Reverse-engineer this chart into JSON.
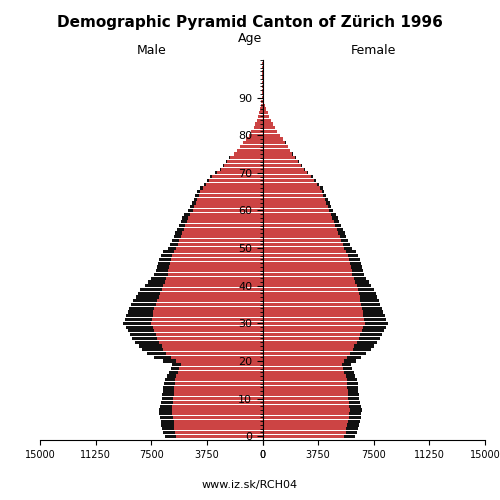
{
  "title": "Demographic Pyramid Canton of Zürich 1996",
  "male_label": "Male",
  "female_label": "Female",
  "age_label": "Age",
  "footer": "www.iz.sk/RCH04",
  "xlim": 15000,
  "xticks": [
    15000,
    11250,
    7500,
    3750,
    0
  ],
  "xticks_right": [
    0,
    3750,
    7500,
    11250,
    15000
  ],
  "bar_color_swiss": "#cc4444",
  "bar_color_foreign": "#111111",
  "bar_height": 0.85,
  "ages": [
    0,
    1,
    2,
    3,
    4,
    5,
    6,
    7,
    8,
    9,
    10,
    11,
    12,
    13,
    14,
    15,
    16,
    17,
    18,
    19,
    20,
    21,
    22,
    23,
    24,
    25,
    26,
    27,
    28,
    29,
    30,
    31,
    32,
    33,
    34,
    35,
    36,
    37,
    38,
    39,
    40,
    41,
    42,
    43,
    44,
    45,
    46,
    47,
    48,
    49,
    50,
    51,
    52,
    53,
    54,
    55,
    56,
    57,
    58,
    59,
    60,
    61,
    62,
    63,
    64,
    65,
    66,
    67,
    68,
    69,
    70,
    71,
    72,
    73,
    74,
    75,
    76,
    77,
    78,
    79,
    80,
    81,
    82,
    83,
    84,
    85,
    86,
    87,
    88,
    89,
    90,
    91,
    92,
    93,
    94,
    95,
    96,
    97,
    98,
    99
  ],
  "male_swiss": [
    5800,
    5900,
    5950,
    5980,
    6000,
    6050,
    6100,
    6120,
    6080,
    6050,
    6020,
    6000,
    5980,
    5960,
    5930,
    5900,
    5800,
    5700,
    5600,
    5500,
    5800,
    6200,
    6500,
    6700,
    6800,
    7000,
    7100,
    7200,
    7300,
    7400,
    7500,
    7450,
    7400,
    7350,
    7300,
    7200,
    7100,
    7000,
    6900,
    6800,
    6700,
    6600,
    6500,
    6400,
    6350,
    6300,
    6250,
    6200,
    6100,
    6000,
    5800,
    5700,
    5600,
    5500,
    5400,
    5300,
    5200,
    5100,
    5000,
    4900,
    4700,
    4600,
    4500,
    4400,
    4300,
    4200,
    4000,
    3800,
    3600,
    3400,
    3100,
    2800,
    2600,
    2400,
    2200,
    1900,
    1700,
    1500,
    1300,
    1100,
    900,
    750,
    600,
    500,
    400,
    300,
    220,
    160,
    110,
    70,
    50,
    35,
    25,
    15,
    10,
    7,
    4,
    3,
    2,
    1
  ],
  "male_foreign": [
    800,
    820,
    830,
    840,
    850,
    860,
    870,
    850,
    820,
    800,
    780,
    760,
    740,
    730,
    720,
    700,
    650,
    620,
    600,
    580,
    900,
    1100,
    1300,
    1400,
    1500,
    1600,
    1700,
    1750,
    1800,
    1820,
    1900,
    1850,
    1800,
    1750,
    1700,
    1650,
    1600,
    1550,
    1500,
    1450,
    1200,
    1100,
    1000,
    900,
    850,
    800,
    780,
    750,
    720,
    700,
    600,
    550,
    520,
    500,
    480,
    450,
    430,
    410,
    400,
    380,
    300,
    280,
    260,
    240,
    220,
    200,
    180,
    160,
    140,
    120,
    100,
    80,
    65,
    55,
    45,
    36,
    28,
    22,
    17,
    12,
    9,
    6,
    5,
    3,
    2,
    2,
    1,
    1,
    1,
    0,
    0,
    0,
    0,
    0,
    0,
    0,
    0,
    0,
    0,
    0
  ],
  "female_swiss": [
    5500,
    5600,
    5650,
    5700,
    5750,
    5800,
    5850,
    5870,
    5840,
    5810,
    5780,
    5760,
    5740,
    5720,
    5700,
    5680,
    5600,
    5520,
    5440,
    5360,
    5500,
    5700,
    5900,
    6100,
    6200,
    6400,
    6500,
    6600,
    6700,
    6800,
    6900,
    6850,
    6800,
    6750,
    6700,
    6650,
    6600,
    6550,
    6500,
    6450,
    6350,
    6250,
    6150,
    6050,
    6000,
    5950,
    5900,
    5850,
    5750,
    5650,
    5500,
    5400,
    5300,
    5200,
    5100,
    5000,
    4900,
    4800,
    4700,
    4600,
    4500,
    4400,
    4300,
    4200,
    4100,
    4000,
    3900,
    3700,
    3500,
    3300,
    3000,
    2800,
    2600,
    2400,
    2200,
    2000,
    1850,
    1700,
    1550,
    1350,
    1150,
    1000,
    850,
    700,
    580,
    460,
    360,
    260,
    180,
    120,
    85,
    60,
    40,
    25,
    16,
    10,
    6,
    4,
    2,
    1
  ],
  "female_foreign": [
    750,
    770,
    780,
    790,
    800,
    810,
    820,
    810,
    790,
    770,
    750,
    740,
    730,
    720,
    710,
    690,
    650,
    620,
    600,
    580,
    800,
    950,
    1100,
    1200,
    1300,
    1350,
    1400,
    1450,
    1500,
    1520,
    1550,
    1500,
    1450,
    1400,
    1350,
    1300,
    1250,
    1200,
    1150,
    1100,
    950,
    900,
    850,
    800,
    760,
    730,
    710,
    690,
    670,
    650,
    550,
    500,
    480,
    460,
    440,
    420,
    400,
    380,
    360,
    330,
    270,
    250,
    230,
    210,
    190,
    170,
    150,
    130,
    110,
    90,
    70,
    58,
    48,
    40,
    32,
    25,
    20,
    15,
    11,
    8,
    5,
    4,
    3,
    2,
    1,
    1,
    1,
    0,
    0,
    0,
    0,
    0,
    0,
    0,
    0,
    0,
    0,
    0,
    0,
    0
  ]
}
